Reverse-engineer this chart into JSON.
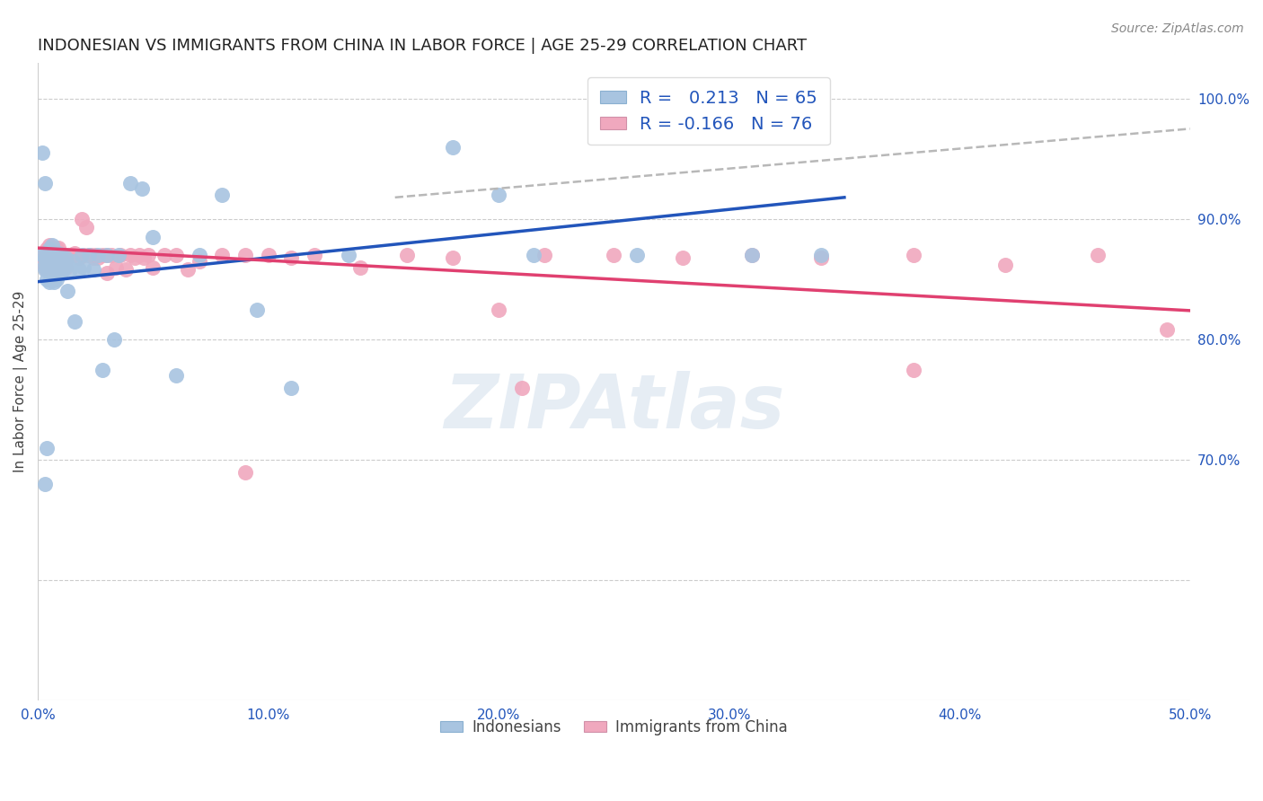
{
  "title": "INDONESIAN VS IMMIGRANTS FROM CHINA IN LABOR FORCE | AGE 25-29 CORRELATION CHART",
  "source_text": "Source: ZipAtlas.com",
  "ylabel": "In Labor Force | Age 25-29",
  "xlim": [
    0.0,
    0.5
  ],
  "ylim": [
    0.5,
    1.03
  ],
  "xtick_labels": [
    "0.0%",
    "10.0%",
    "20.0%",
    "30.0%",
    "40.0%",
    "50.0%"
  ],
  "xtick_vals": [
    0.0,
    0.1,
    0.2,
    0.3,
    0.4,
    0.5
  ],
  "ytick_labels": [
    "100.0%",
    "90.0%",
    "80.0%",
    "70.0%"
  ],
  "ytick_vals": [
    1.0,
    0.9,
    0.8,
    0.7
  ],
  "right_ytick_labels": [
    "100.0%",
    "90.0%",
    "80.0%",
    "70.0%"
  ],
  "right_ytick_vals": [
    1.0,
    0.9,
    0.8,
    0.7
  ],
  "blue_color": "#a8c4e0",
  "pink_color": "#f0a8be",
  "blue_line_color": "#2255bb",
  "pink_line_color": "#e04070",
  "dashed_line_color": "#b8b8b8",
  "legend_blue_label": "R =   0.213   N = 65",
  "legend_pink_label": "R = -0.166   N = 76",
  "watermark": "ZIPAtlas",
  "blue_line_x": [
    0.0,
    0.35
  ],
  "blue_line_y": [
    0.848,
    0.918
  ],
  "pink_line_x": [
    0.0,
    0.5
  ],
  "pink_line_y": [
    0.876,
    0.824
  ],
  "dashed_line_x": [
    0.155,
    0.5
  ],
  "dashed_line_y": [
    0.918,
    0.975
  ],
  "blue_scatter_x": [
    0.002,
    0.003,
    0.003,
    0.003,
    0.004,
    0.004,
    0.004,
    0.004,
    0.005,
    0.005,
    0.005,
    0.005,
    0.005,
    0.006,
    0.006,
    0.006,
    0.006,
    0.007,
    0.007,
    0.007,
    0.007,
    0.008,
    0.008,
    0.008,
    0.009,
    0.009,
    0.01,
    0.01,
    0.01,
    0.011,
    0.012,
    0.013,
    0.013,
    0.014,
    0.015,
    0.016,
    0.018,
    0.019,
    0.02,
    0.022,
    0.024,
    0.026,
    0.028,
    0.03,
    0.033,
    0.035,
    0.04,
    0.045,
    0.05,
    0.06,
    0.07,
    0.08,
    0.095,
    0.11,
    0.135,
    0.18,
    0.2,
    0.215,
    0.26,
    0.31,
    0.34,
    0.002,
    0.003,
    0.003,
    0.004
  ],
  "blue_scatter_y": [
    0.87,
    0.868,
    0.862,
    0.858,
    0.872,
    0.865,
    0.858,
    0.85,
    0.875,
    0.87,
    0.863,
    0.857,
    0.848,
    0.878,
    0.868,
    0.86,
    0.853,
    0.872,
    0.865,
    0.857,
    0.848,
    0.868,
    0.858,
    0.85,
    0.872,
    0.86,
    0.87,
    0.862,
    0.855,
    0.858,
    0.868,
    0.862,
    0.84,
    0.858,
    0.865,
    0.815,
    0.858,
    0.87,
    0.86,
    0.87,
    0.858,
    0.87,
    0.775,
    0.87,
    0.8,
    0.87,
    0.93,
    0.925,
    0.885,
    0.77,
    0.87,
    0.92,
    0.825,
    0.76,
    0.87,
    0.96,
    0.92,
    0.87,
    0.87,
    0.87,
    0.87,
    0.955,
    0.93,
    0.68,
    0.71
  ],
  "pink_scatter_x": [
    0.002,
    0.003,
    0.003,
    0.003,
    0.004,
    0.004,
    0.005,
    0.005,
    0.005,
    0.006,
    0.006,
    0.006,
    0.007,
    0.007,
    0.007,
    0.008,
    0.008,
    0.009,
    0.009,
    0.009,
    0.01,
    0.01,
    0.011,
    0.012,
    0.012,
    0.013,
    0.014,
    0.015,
    0.016,
    0.018,
    0.019,
    0.02,
    0.021,
    0.022,
    0.023,
    0.024,
    0.025,
    0.026,
    0.028,
    0.03,
    0.03,
    0.032,
    0.034,
    0.036,
    0.038,
    0.04,
    0.042,
    0.044,
    0.046,
    0.048,
    0.05,
    0.055,
    0.06,
    0.065,
    0.07,
    0.08,
    0.09,
    0.1,
    0.11,
    0.12,
    0.14,
    0.16,
    0.18,
    0.2,
    0.22,
    0.25,
    0.28,
    0.31,
    0.34,
    0.38,
    0.42,
    0.46,
    0.49,
    0.38,
    0.09,
    0.21
  ],
  "pink_scatter_y": [
    0.87,
    0.872,
    0.866,
    0.86,
    0.875,
    0.868,
    0.878,
    0.87,
    0.862,
    0.876,
    0.868,
    0.86,
    0.875,
    0.868,
    0.858,
    0.875,
    0.865,
    0.876,
    0.868,
    0.858,
    0.872,
    0.862,
    0.87,
    0.87,
    0.86,
    0.868,
    0.87,
    0.87,
    0.872,
    0.868,
    0.9,
    0.87,
    0.893,
    0.87,
    0.87,
    0.868,
    0.87,
    0.868,
    0.87,
    0.87,
    0.855,
    0.87,
    0.86,
    0.87,
    0.858,
    0.87,
    0.868,
    0.87,
    0.868,
    0.87,
    0.86,
    0.87,
    0.87,
    0.858,
    0.865,
    0.87,
    0.87,
    0.87,
    0.868,
    0.87,
    0.86,
    0.87,
    0.868,
    0.825,
    0.87,
    0.87,
    0.868,
    0.87,
    0.868,
    0.87,
    0.862,
    0.87,
    0.808,
    0.775,
    0.69,
    0.76
  ]
}
